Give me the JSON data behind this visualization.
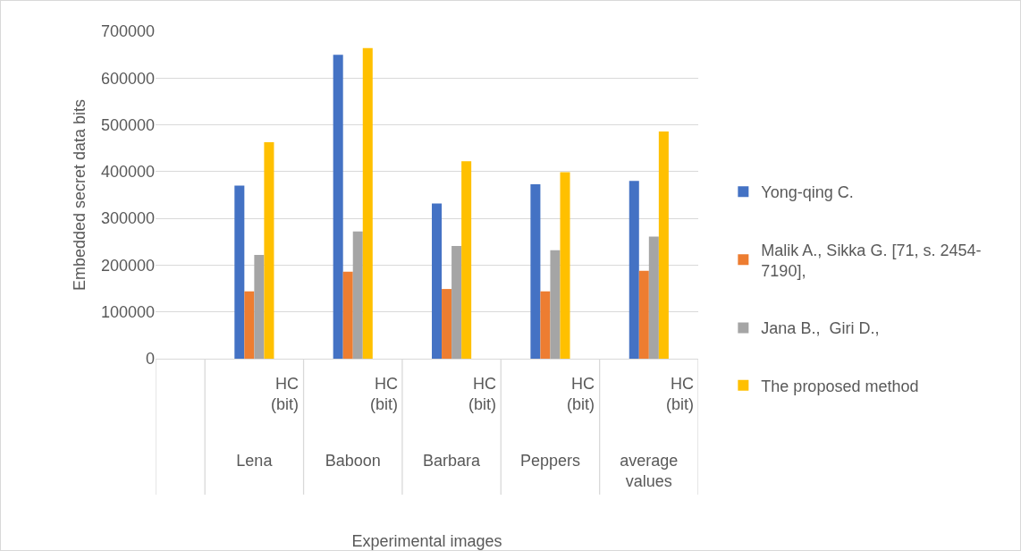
{
  "chart_data": {
    "type": "bar",
    "xlabel": "Experimental images",
    "ylabel": "Embedded secret data bits",
    "categories": [
      null,
      "Lena",
      "Baboon",
      "Barbara",
      "Peppers",
      "average values"
    ],
    "series": [
      {
        "name": "Yong-qing C.",
        "color": "#4472c4",
        "values": [
          null,
          370000,
          650000,
          332000,
          373000,
          380000
        ]
      },
      {
        "name": "Malik A., Sikka G. [71, s. 2454-7190],",
        "color": "#ed7d31",
        "values": [
          null,
          144000,
          186000,
          149000,
          144000,
          188000
        ]
      },
      {
        "name": "Jana B.,  Giri D.,",
        "color": "#a5a5a5",
        "values": [
          null,
          222000,
          272000,
          241000,
          232000,
          261000
        ]
      },
      {
        "name": "The proposed method",
        "color": "#ffc000",
        "values": [
          null,
          463000,
          664000,
          422000,
          399000,
          486000
        ]
      }
    ],
    "annotations": [
      "HC (bit)",
      "HC (bit)",
      "HC (bit)",
      "HC (bit)",
      "HC (bit)"
    ],
    "ylim": [
      0,
      700000
    ],
    "yticks": [
      0,
      100000,
      200000,
      300000,
      400000,
      500000,
      600000,
      700000
    ],
    "grid": "y",
    "legend": "right"
  }
}
